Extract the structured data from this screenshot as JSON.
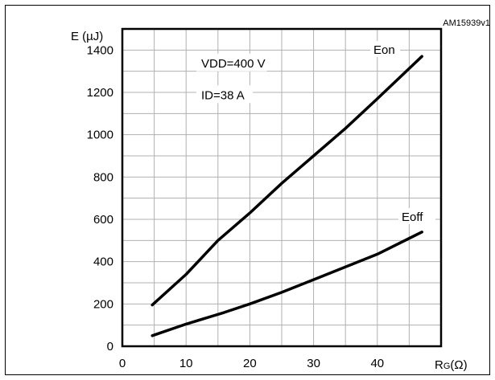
{
  "figure_code": "AM15939v1",
  "chart_data": {
    "type": "line",
    "ylabel": "E (µJ)",
    "xlabel_main": "R",
    "xlabel_sub": "G",
    "xlabel_unit": "(Ω)",
    "xlim": [
      0,
      50
    ],
    "ylim": [
      0,
      1500
    ],
    "x_ticks": [
      0,
      10,
      20,
      30,
      40
    ],
    "y_ticks": [
      0,
      200,
      400,
      600,
      800,
      1000,
      1200,
      1400
    ],
    "grid": true,
    "conditions": [
      "VDD=400 V",
      "ID=38 A"
    ],
    "series": [
      {
        "name": "Eon",
        "x": [
          4.7,
          10,
          15,
          20,
          25,
          30,
          35,
          40,
          47
        ],
        "values": [
          195,
          340,
          500,
          630,
          770,
          900,
          1030,
          1170,
          1370
        ]
      },
      {
        "name": "Eoff",
        "x": [
          4.7,
          10,
          16,
          20,
          25,
          30,
          35,
          40,
          47
        ],
        "values": [
          50,
          105,
          160,
          200,
          255,
          315,
          375,
          435,
          540
        ]
      }
    ]
  }
}
